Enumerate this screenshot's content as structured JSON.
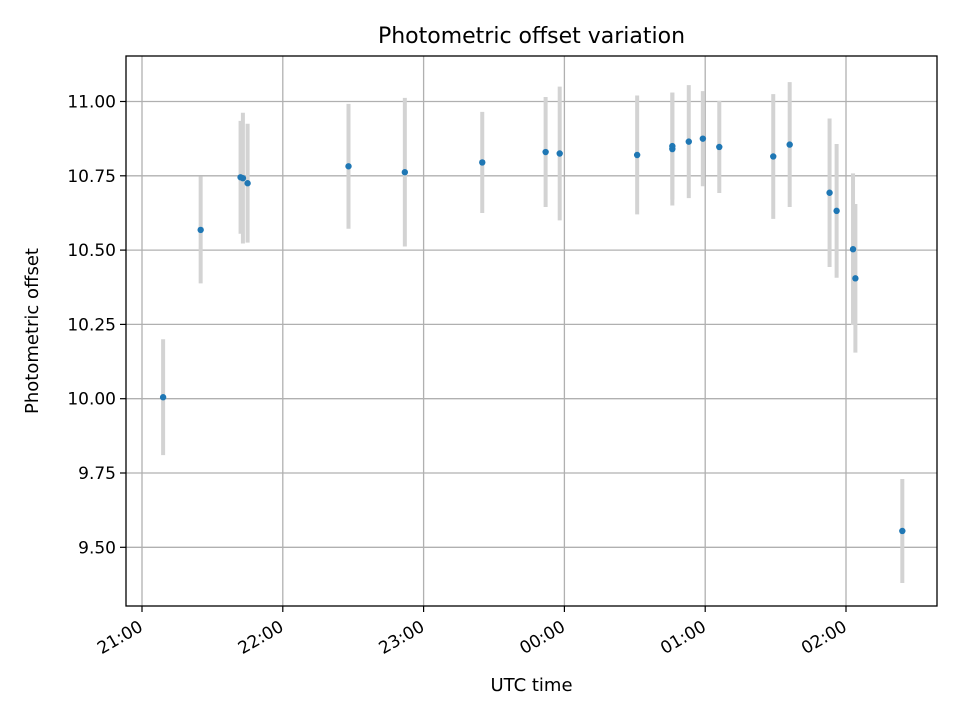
{
  "chart_data": {
    "type": "scatter",
    "title": "Photometric offset variation",
    "xlabel": "UTC time",
    "ylabel": "Photometric offset",
    "grid": true,
    "legend": "none",
    "xlim": [
      "21:00",
      "02:40"
    ],
    "ylim": [
      9.3,
      11.15
    ],
    "x_ticks": [
      "21:00",
      "22:00",
      "23:00",
      "00:00",
      "01:00",
      "02:00"
    ],
    "y_ticks": [
      "9.50",
      "9.75",
      "10.00",
      "10.25",
      "10.50",
      "10.75",
      "11.00"
    ],
    "colors": {
      "point": "#1f77b4",
      "errorbar": "#d3d3d3",
      "grid": "#b0b0b0"
    },
    "series": [
      {
        "points": [
          {
            "x": "21:09",
            "y": 10.005,
            "yerr": 0.195
          },
          {
            "x": "21:25",
            "y": 10.568,
            "yerr": 0.18
          },
          {
            "x": "21:42",
            "y": 10.745,
            "yerr": 0.19
          },
          {
            "x": "21:43",
            "y": 10.742,
            "yerr": 0.22
          },
          {
            "x": "21:45",
            "y": 10.725,
            "yerr": 0.2
          },
          {
            "x": "22:28",
            "y": 10.782,
            "yerr": 0.21
          },
          {
            "x": "22:52",
            "y": 10.762,
            "yerr": 0.25
          },
          {
            "x": "23:25",
            "y": 10.795,
            "yerr": 0.17
          },
          {
            "x": "23:52",
            "y": 10.83,
            "yerr": 0.185
          },
          {
            "x": "23:58",
            "y": 10.825,
            "yerr": 0.225
          },
          {
            "x": "00:31",
            "y": 10.82,
            "yerr": 0.2
          },
          {
            "x": "00:46",
            "y": 10.84,
            "yerr": 0.19
          },
          {
            "x": "00:46",
            "y": 10.85,
            "yerr": 0.18
          },
          {
            "x": "00:53",
            "y": 10.865,
            "yerr": 0.19
          },
          {
            "x": "00:59",
            "y": 10.875,
            "yerr": 0.16
          },
          {
            "x": "01:06",
            "y": 10.847,
            "yerr": 0.155
          },
          {
            "x": "01:29",
            "y": 10.815,
            "yerr": 0.21
          },
          {
            "x": "01:36",
            "y": 10.855,
            "yerr": 0.21
          },
          {
            "x": "01:53",
            "y": 10.693,
            "yerr": 0.25
          },
          {
            "x": "01:56",
            "y": 10.632,
            "yerr": 0.225
          },
          {
            "x": "02:03",
            "y": 10.503,
            "yerr": 0.255
          },
          {
            "x": "02:04",
            "y": 10.405,
            "yerr": 0.25
          },
          {
            "x": "02:24",
            "y": 9.555,
            "yerr": 0.175
          }
        ]
      }
    ]
  }
}
